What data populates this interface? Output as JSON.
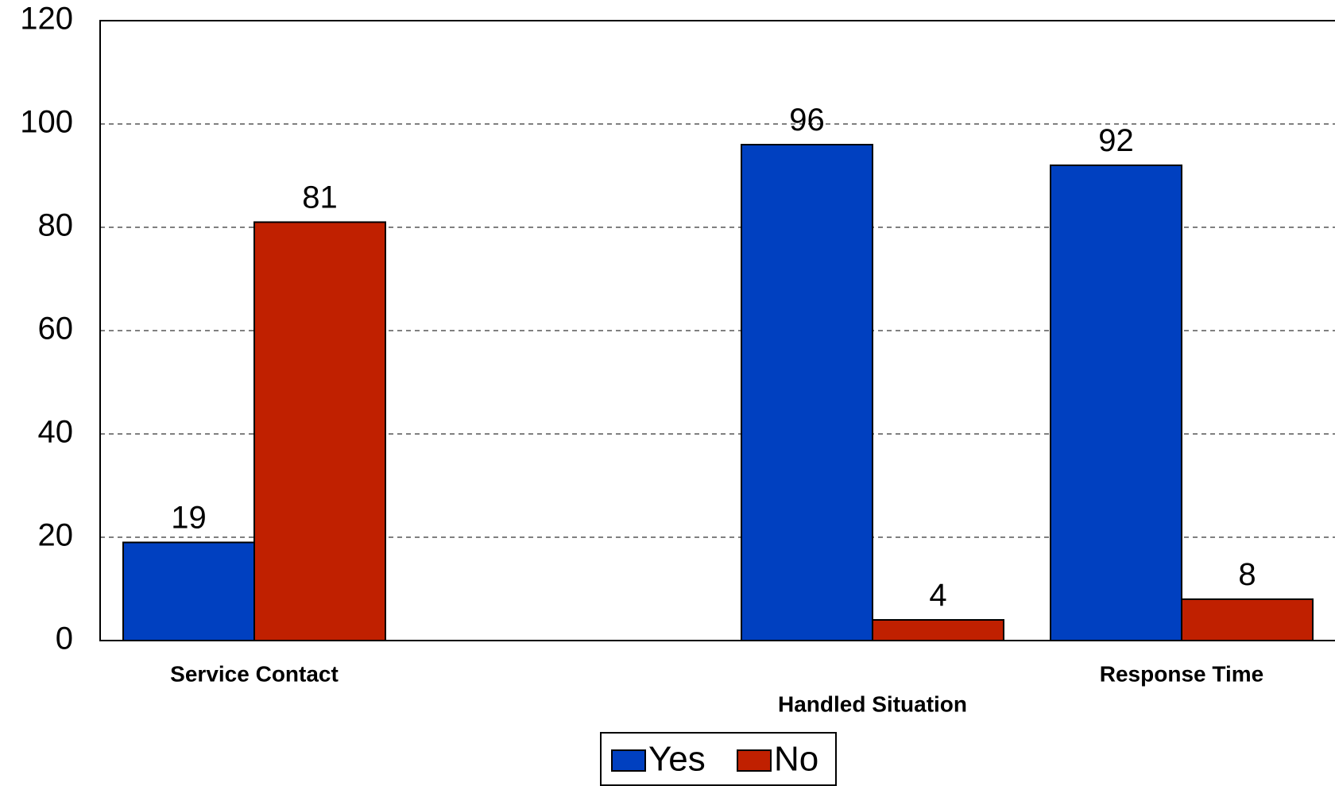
{
  "chart_data": {
    "type": "bar",
    "categories": [
      "Service Contact",
      "Handled Situation",
      "Response Time"
    ],
    "series": [
      {
        "name": "Yes",
        "values": [
          19,
          96,
          92
        ]
      },
      {
        "name": "No",
        "values": [
          81,
          4,
          8
        ]
      }
    ],
    "ylim": [
      0,
      120
    ],
    "yticks": [
      0,
      20,
      40,
      60,
      80,
      100,
      120
    ],
    "grid": "horizontal-dashed",
    "legend": "bottom-center",
    "colors": {
      "Yes": "#0040c0",
      "No": "#c02000"
    }
  }
}
